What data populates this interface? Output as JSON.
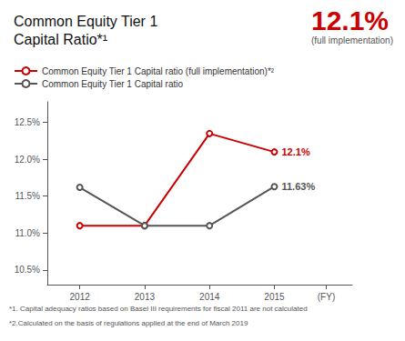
{
  "chart_data": {
    "type": "line",
    "title": "Common Equity Tier 1\nCapital Ratio*¹",
    "headline": "12.1%",
    "subtitle": "(full implementation)",
    "x": [
      2012,
      2013,
      2014,
      2015
    ],
    "series": [
      {
        "name": "Common Equity Tier 1 Capital ratio (full implementation)*²",
        "color": "#cc0000",
        "values": [
          11.1,
          11.1,
          12.35,
          12.1
        ],
        "annotation": "12.1%"
      },
      {
        "name": "Common Equity Tier 1 Capital ratio",
        "color": "#555555",
        "values": [
          11.62,
          11.1,
          11.1,
          11.63
        ],
        "annotation": "11.63%"
      }
    ],
    "xlim": [
      2011.5,
      2016.2
    ],
    "xticks": [
      2012,
      2013,
      2014,
      2015,
      {
        "value": 2015.8,
        "label": "(FY)"
      }
    ],
    "ylim": [
      10.3,
      12.78
    ],
    "yticks": [
      {
        "value": 10.5,
        "label": "10.5%"
      },
      {
        "value": 11.0,
        "label": "11.0%"
      },
      {
        "value": 11.5,
        "label": "11.5%"
      },
      {
        "value": 12.0,
        "label": "12.0%"
      },
      {
        "value": 12.5,
        "label": "12.5%"
      }
    ],
    "grid": false,
    "legend": "top",
    "footnotes": [
      "*1. Capital adequacy ratios based on Basel III requirements for fiscal 2011 are not calculated",
      "*2.Calculated on the basis of regulations applied at the end of March 2019"
    ]
  }
}
